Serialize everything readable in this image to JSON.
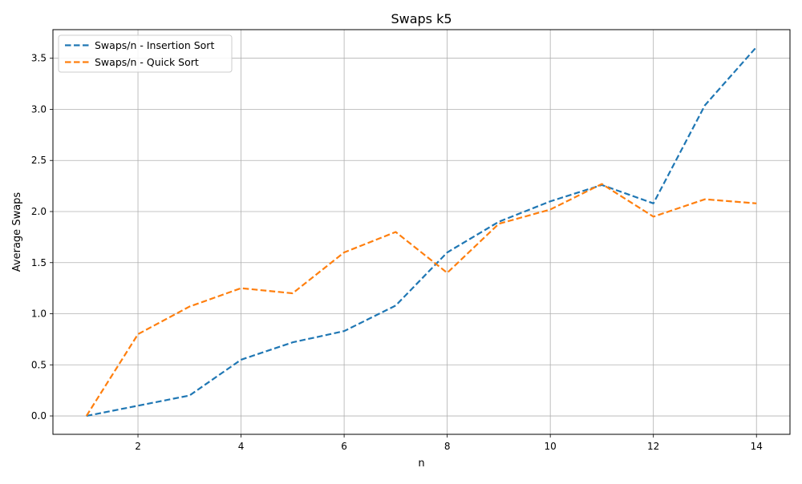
{
  "chart_data": {
    "type": "line",
    "title": "Swaps k5",
    "xlabel": "n",
    "ylabel": "Average Swaps",
    "x": [
      1,
      2,
      3,
      4,
      5,
      6,
      7,
      8,
      9,
      10,
      11,
      12,
      13,
      14
    ],
    "xlim": [
      0.35,
      14.65
    ],
    "ylim": [
      -0.18,
      3.78
    ],
    "xticks": [
      "2",
      "4",
      "6",
      "8",
      "10",
      "12",
      "14"
    ],
    "xtick_values": [
      2,
      4,
      6,
      8,
      10,
      12,
      14
    ],
    "yticks": [
      "0.0",
      "0.5",
      "1.0",
      "1.5",
      "2.0",
      "2.5",
      "3.0",
      "3.5"
    ],
    "ytick_values": [
      0.0,
      0.5,
      1.0,
      1.5,
      2.0,
      2.5,
      3.0,
      3.5
    ],
    "grid": true,
    "legend_position": "top-left",
    "line_style": "dashed",
    "series": [
      {
        "name": "Swaps/n - Insertion Sort",
        "color": "#1f77b4",
        "values": [
          0.0,
          0.1,
          0.2,
          0.55,
          0.72,
          0.83,
          1.08,
          1.6,
          1.9,
          2.1,
          2.26,
          2.08,
          3.04,
          3.61
        ]
      },
      {
        "name": "Swaps/n - Quick Sort",
        "color": "#ff7f0e",
        "values": [
          0.0,
          0.8,
          1.07,
          1.25,
          1.2,
          1.6,
          1.8,
          1.4,
          1.88,
          2.02,
          2.27,
          1.95,
          2.12,
          2.08
        ]
      }
    ]
  }
}
